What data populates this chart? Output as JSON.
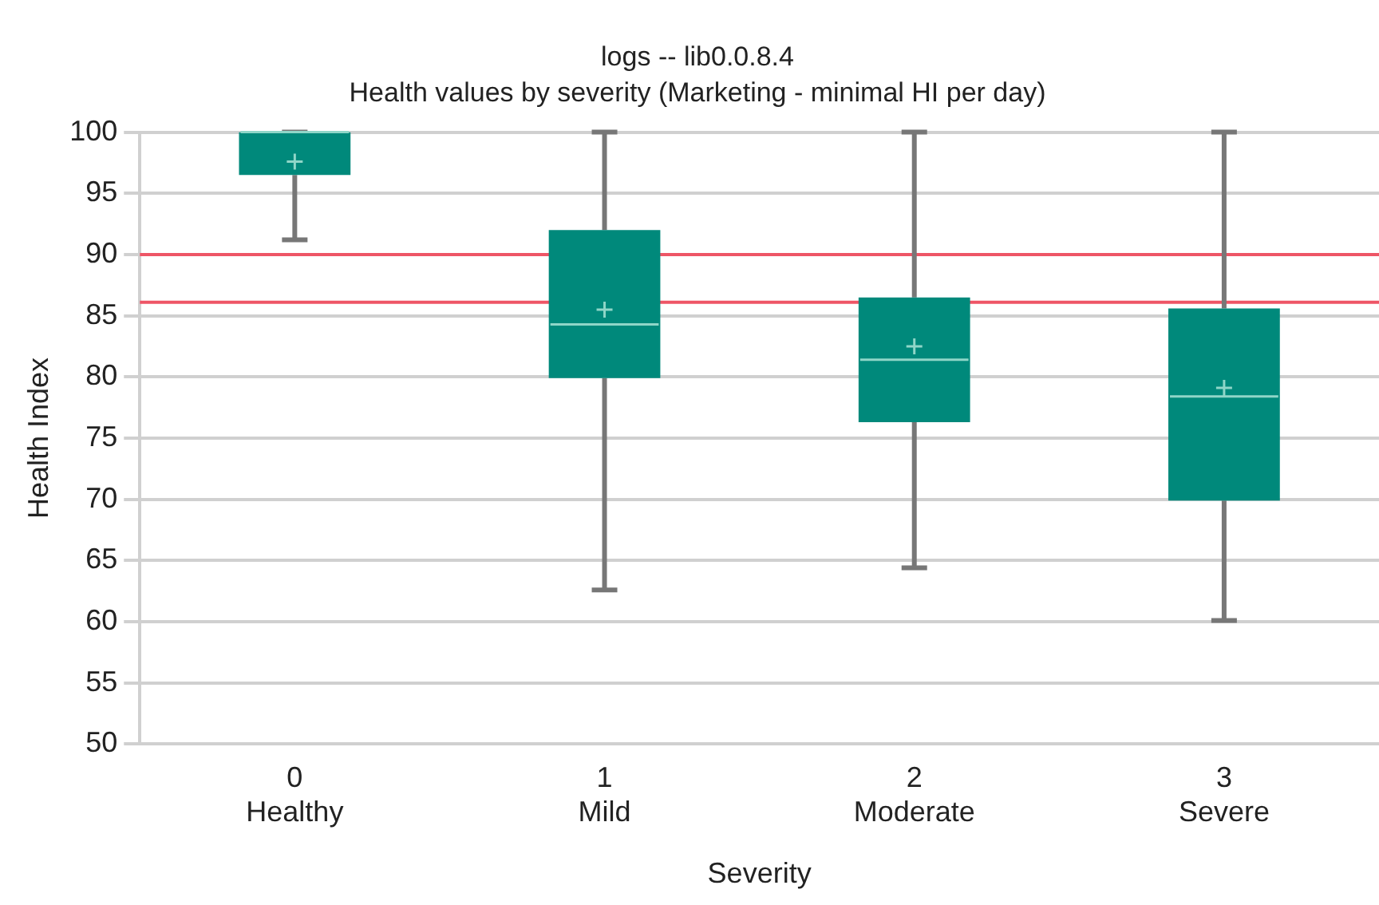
{
  "chart_data": {
    "type": "box",
    "title": "logs -- lib0.0.8.4",
    "subtitle": "Health values by severity (Marketing - minimal HI per day)",
    "xlabel": "Severity",
    "ylabel": "Health Index",
    "categories": [
      "0\nHealthy",
      "1\nMild",
      "2\nModerate",
      "3\nSevere"
    ],
    "color": "#00897b",
    "boxes": [
      {
        "low": 91.2,
        "q1": 96.5,
        "median": 100,
        "q3": 100,
        "high": 100,
        "mean": 97.6
      },
      {
        "low": 62.6,
        "q1": 79.9,
        "median": 84.3,
        "q3": 92.0,
        "high": 100,
        "mean": 85.5
      },
      {
        "low": 64.4,
        "q1": 76.3,
        "median": 81.4,
        "q3": 86.5,
        "high": 100,
        "mean": 82.5
      },
      {
        "low": 60.1,
        "q1": 69.9,
        "median": 78.4,
        "q3": 85.6,
        "high": 100,
        "mean": 79.1
      }
    ],
    "ylim": [
      50,
      100
    ],
    "yticks": [
      50,
      55,
      60,
      65,
      70,
      75,
      80,
      85,
      90,
      95,
      100
    ],
    "ref_lines": [
      {
        "axis": "y",
        "value": 90,
        "color": "#ee5566"
      },
      {
        "axis": "y",
        "value": 86.1,
        "color": "#ee5566"
      }
    ],
    "grid": "y",
    "legend": false
  }
}
